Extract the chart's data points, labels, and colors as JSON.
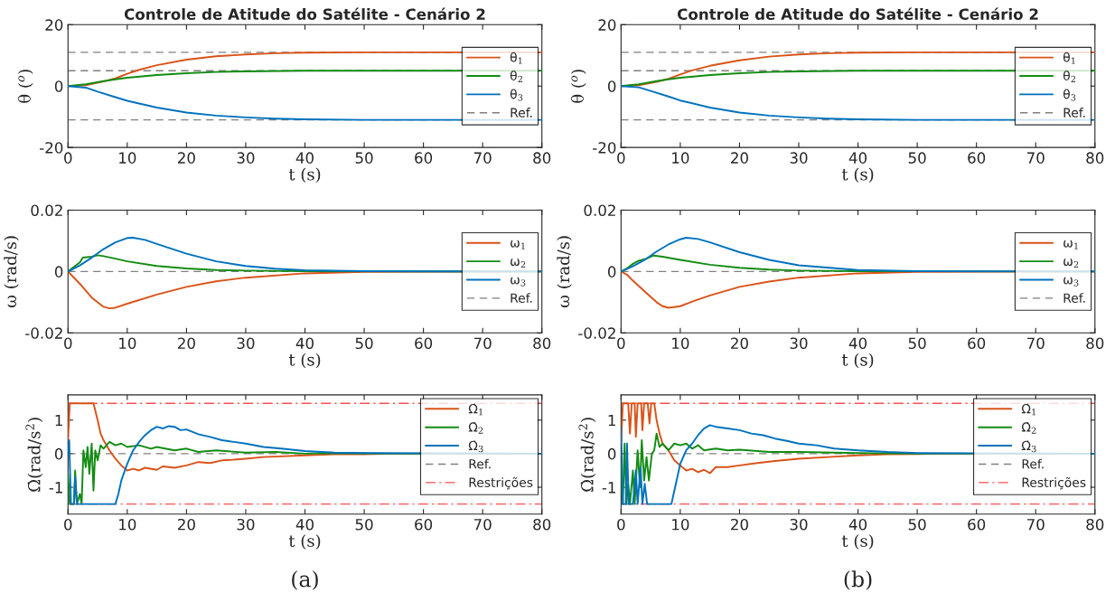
{
  "chart_data": [
    {
      "type": "line",
      "title": "Controle de Atitude do Satélite - Cenário 2",
      "xlabel": "t (s)",
      "ylabel": "θ ($^{o}$)",
      "xlim": [
        0,
        80
      ],
      "xticks": [
        0,
        10,
        20,
        30,
        40,
        50,
        60,
        70,
        80
      ],
      "ylim": [
        -20,
        20
      ],
      "yticks": [
        -20,
        0,
        20
      ],
      "legend": "right",
      "grid": false,
      "ref_lines": [
        {
          "axis": "y",
          "value": 11,
          "color": "#808080",
          "line_style": "dashed",
          "label": "Ref."
        },
        {
          "axis": "y",
          "value": 5,
          "color": "#808080",
          "line_style": "dashed"
        },
        {
          "axis": "y",
          "value": -11,
          "color": "#808080",
          "line_style": "dashed"
        }
      ],
      "series": [
        {
          "name": "θ$_{1}$",
          "color": "#d95319",
          "x": [
            0,
            3,
            6,
            8,
            10,
            12,
            15,
            20,
            25,
            30,
            35,
            40,
            50,
            80
          ],
          "values": [
            0,
            0.3,
            1.5,
            2.5,
            4,
            5.3,
            6.8,
            8.6,
            9.7,
            10.3,
            10.7,
            10.9,
            11,
            11
          ]
        },
        {
          "name": "θ$_{2}$",
          "color": "#138c13",
          "x": [
            0,
            3,
            6,
            8,
            10,
            15,
            20,
            25,
            30,
            40,
            80
          ],
          "values": [
            0,
            0.6,
            1.6,
            2.2,
            2.7,
            3.6,
            4.2,
            4.6,
            4.8,
            5,
            5
          ]
        },
        {
          "name": "θ$_{3}$",
          "color": "#0072bd",
          "x": [
            0,
            3,
            5,
            8,
            10,
            15,
            20,
            25,
            30,
            35,
            40,
            50,
            80
          ],
          "values": [
            0,
            -0.5,
            -1.8,
            -3.6,
            -4.8,
            -7,
            -8.6,
            -9.6,
            -10.2,
            -10.6,
            -10.8,
            -11,
            -11
          ]
        }
      ]
    },
    {
      "type": "line",
      "title": "Controle de Atitude do Satélite - Cenário 2",
      "xlabel": "t (s)",
      "ylabel": "θ ($^{o}$)",
      "xlim": [
        0,
        80
      ],
      "xticks": [
        0,
        10,
        20,
        30,
        40,
        50,
        60,
        70,
        80
      ],
      "ylim": [
        -20,
        20
      ],
      "yticks": [
        -20,
        0,
        20
      ],
      "legend": "right",
      "grid": false,
      "ref_lines": [
        {
          "axis": "y",
          "value": 11,
          "color": "#808080",
          "line_style": "dashed",
          "label": "Ref."
        },
        {
          "axis": "y",
          "value": 5,
          "color": "#808080",
          "line_style": "dashed"
        },
        {
          "axis": "y",
          "value": -11,
          "color": "#808080",
          "line_style": "dashed"
        }
      ],
      "series": [
        {
          "name": "θ$_{1}$",
          "color": "#d95319",
          "x": [
            0,
            3,
            6,
            8,
            10,
            12,
            15,
            20,
            25,
            30,
            35,
            40,
            50,
            80
          ],
          "values": [
            0,
            0.3,
            1.4,
            2.4,
            3.8,
            5.1,
            6.6,
            8.4,
            9.6,
            10.3,
            10.7,
            10.9,
            11,
            11
          ]
        },
        {
          "name": "θ$_{2}$",
          "color": "#138c13",
          "x": [
            0,
            3,
            6,
            8,
            10,
            15,
            20,
            25,
            30,
            40,
            80
          ],
          "values": [
            0,
            0.6,
            1.6,
            2.2,
            2.7,
            3.6,
            4.2,
            4.6,
            4.8,
            5,
            5
          ]
        },
        {
          "name": "θ$_{3}$",
          "color": "#0072bd",
          "x": [
            0,
            3,
            5,
            8,
            10,
            15,
            20,
            25,
            30,
            35,
            40,
            50,
            80
          ],
          "values": [
            0,
            -0.4,
            -1.6,
            -3.4,
            -4.7,
            -7,
            -8.6,
            -9.6,
            -10.2,
            -10.6,
            -10.8,
            -11,
            -11
          ]
        }
      ]
    },
    {
      "type": "line",
      "xlabel": "t (s)",
      "ylabel": "ω (rad/s)",
      "xlim": [
        0,
        80
      ],
      "xticks": [
        0,
        10,
        20,
        30,
        40,
        50,
        60,
        70,
        80
      ],
      "ylim": [
        -0.02,
        0.02
      ],
      "yticks": [
        -0.02,
        0,
        0.02
      ],
      "legend": "right",
      "grid": false,
      "ref_lines": [
        {
          "axis": "y",
          "value": 0,
          "color": "#808080",
          "line_style": "dashed",
          "label": "Ref."
        }
      ],
      "series": [
        {
          "name": "ω$_{1}$",
          "color": "#d95319",
          "x": [
            0,
            2,
            4,
            6,
            7,
            8,
            10,
            15,
            20,
            25,
            30,
            40,
            50,
            80
          ],
          "values": [
            0,
            -0.004,
            -0.0085,
            -0.0115,
            -0.012,
            -0.0118,
            -0.0105,
            -0.0075,
            -0.005,
            -0.0032,
            -0.002,
            -0.0006,
            -0.0001,
            0
          ]
        },
        {
          "name": "ω$_{2}$",
          "color": "#138c13",
          "x": [
            0,
            1,
            2,
            2.5,
            4,
            5,
            6,
            8,
            10,
            15,
            20,
            25,
            30,
            40,
            80
          ],
          "values": [
            0,
            0.0015,
            0.003,
            0.0045,
            0.0048,
            0.0053,
            0.005,
            0.0042,
            0.0033,
            0.0018,
            0.001,
            0.0005,
            0.0003,
            0.0001,
            0
          ]
        },
        {
          "name": "ω$_{3}$",
          "color": "#0072bd",
          "x": [
            0,
            2,
            4,
            6,
            8,
            10,
            11,
            13,
            15,
            20,
            25,
            30,
            35,
            40,
            50,
            80
          ],
          "values": [
            0,
            0.002,
            0.0045,
            0.0073,
            0.0095,
            0.0109,
            0.011,
            0.0103,
            0.009,
            0.0058,
            0.0033,
            0.0018,
            0.0009,
            0.0004,
            0.0001,
            0
          ]
        }
      ]
    },
    {
      "type": "line",
      "xlabel": "t (s)",
      "ylabel": "ω (rad/s)",
      "xlim": [
        0,
        80
      ],
      "xticks": [
        0,
        10,
        20,
        30,
        40,
        50,
        60,
        70,
        80
      ],
      "ylim": [
        -0.02,
        0.02
      ],
      "yticks": [
        -0.02,
        0,
        0.02
      ],
      "legend": "right",
      "grid": false,
      "ref_lines": [
        {
          "axis": "y",
          "value": 0,
          "color": "#808080",
          "line_style": "dashed",
          "label": "Ref."
        }
      ],
      "series": [
        {
          "name": "ω$_{1}$",
          "color": "#d95319",
          "x": [
            0,
            1,
            2,
            4,
            6,
            7,
            8,
            10,
            12,
            15,
            20,
            25,
            30,
            40,
            50,
            80
          ],
          "values": [
            0,
            -0.001,
            -0.003,
            -0.0065,
            -0.01,
            -0.0113,
            -0.0118,
            -0.0113,
            -0.0098,
            -0.0078,
            -0.005,
            -0.0033,
            -0.002,
            -0.0006,
            -0.0001,
            0
          ]
        },
        {
          "name": "ω$_{2}$",
          "color": "#138c13",
          "x": [
            0,
            1,
            2,
            3,
            4,
            5,
            5.5,
            7,
            10,
            15,
            20,
            25,
            30,
            40,
            80
          ],
          "values": [
            0,
            0.001,
            0.0025,
            0.0035,
            0.004,
            0.0048,
            0.0052,
            0.0048,
            0.0038,
            0.0022,
            0.0012,
            0.0006,
            0.0003,
            0.0001,
            0
          ]
        },
        {
          "name": "ω$_{3}$",
          "color": "#0072bd",
          "x": [
            0,
            2,
            4,
            6,
            8,
            10,
            11,
            13,
            15,
            20,
            25,
            30,
            40,
            50,
            80
          ],
          "values": [
            0,
            0.0017,
            0.0038,
            0.0065,
            0.0088,
            0.0105,
            0.011,
            0.0106,
            0.0095,
            0.0063,
            0.0038,
            0.002,
            0.0005,
            0.0001,
            0
          ]
        }
      ]
    },
    {
      "type": "line",
      "xlabel": "t (s)",
      "ylabel": "Ω̇(rad/s$^{2}$)",
      "xlim": [
        0,
        80
      ],
      "xticks": [
        0,
        10,
        20,
        30,
        40,
        50,
        60,
        70,
        80
      ],
      "ylim": [
        -1.8,
        1.75
      ],
      "yticks": [
        -1,
        0,
        1
      ],
      "legend": "top right",
      "grid": false,
      "annotations": [
        "(a)"
      ],
      "ref_lines": [
        {
          "axis": "y",
          "value": 0,
          "color": "#808080",
          "line_style": "dashed",
          "label": "Ref."
        },
        {
          "axis": "y",
          "value": 1.5,
          "color": "#ff5050",
          "line_style": "dashdot",
          "label": "Restrições"
        },
        {
          "axis": "y",
          "value": -1.5,
          "color": "#ff5050",
          "line_style": "dashdot"
        }
      ],
      "series": [
        {
          "name": "Ω̇$_{1}$",
          "color": "#d95319",
          "x": [
            0,
            0.3,
            4.3,
            5,
            5.5,
            6,
            7,
            8,
            9,
            10,
            11,
            12,
            13,
            15,
            16,
            18,
            20,
            22,
            24,
            26,
            28,
            30,
            33,
            36,
            40,
            45,
            50,
            55,
            80
          ],
          "values": [
            0.4,
            1.5,
            1.5,
            1.0,
            0.6,
            0.4,
            0.1,
            -0.15,
            -0.35,
            -0.5,
            -0.45,
            -0.5,
            -0.42,
            -0.48,
            -0.38,
            -0.42,
            -0.35,
            -0.25,
            -0.28,
            -0.2,
            -0.18,
            -0.15,
            -0.1,
            -0.08,
            -0.05,
            -0.02,
            -0.02,
            0,
            0
          ]
        },
        {
          "name": "Ω̇$_{2}$",
          "color": "#138c13",
          "x": [
            0,
            0.3,
            1,
            1.2,
            1.5,
            2,
            2.3,
            2.6,
            3,
            3.3,
            3.6,
            4,
            4.3,
            4.6,
            5,
            5.5,
            6,
            7,
            8,
            9,
            10,
            12,
            14,
            15,
            18,
            20,
            22,
            25,
            30,
            35,
            40,
            45,
            55,
            80
          ],
          "values": [
            -0.6,
            -1.5,
            -1.5,
            -0.5,
            -1.5,
            -1.2,
            -1.5,
            0.1,
            -0.4,
            0.2,
            -0.6,
            0.3,
            -1.1,
            0.1,
            -0.2,
            0.25,
            0.15,
            0.35,
            0.25,
            0.3,
            0.2,
            0.25,
            0.15,
            0.2,
            0.1,
            0.15,
            0.05,
            0.1,
            0.03,
            0.05,
            0,
            0.02,
            0,
            0
          ]
        },
        {
          "name": "Ω̇$_{3}$",
          "color": "#0072bd",
          "x": [
            0,
            0.2,
            0.5,
            1,
            1.2,
            1.5,
            2,
            8,
            8.5,
            9,
            10,
            11,
            12,
            13,
            14,
            15,
            16,
            17,
            18,
            19,
            20,
            22,
            24,
            26,
            28,
            30,
            33,
            36,
            40,
            45,
            50,
            80
          ],
          "values": [
            0,
            0.4,
            -1.5,
            -1.5,
            -0.7,
            -1.5,
            -1.5,
            -1.5,
            -1.2,
            -0.8,
            -0.3,
            0.1,
            0.35,
            0.55,
            0.7,
            0.8,
            0.75,
            0.82,
            0.8,
            0.7,
            0.72,
            0.58,
            0.5,
            0.4,
            0.35,
            0.3,
            0.2,
            0.15,
            0.08,
            0.03,
            0.02,
            0
          ]
        }
      ]
    },
    {
      "type": "line",
      "xlabel": "t (s)",
      "ylabel": "Ω̇(rad/s$^{2}$)",
      "xlim": [
        0,
        80
      ],
      "xticks": [
        0,
        10,
        20,
        30,
        40,
        50,
        60,
        70,
        80
      ],
      "ylim": [
        -1.8,
        1.75
      ],
      "yticks": [
        -1,
        0,
        1
      ],
      "legend": "top right",
      "grid": false,
      "annotations": [
        "(b)"
      ],
      "ref_lines": [
        {
          "axis": "y",
          "value": 0,
          "color": "#808080",
          "line_style": "dashed",
          "label": "Ref."
        },
        {
          "axis": "y",
          "value": 1.5,
          "color": "#ff5050",
          "line_style": "dashdot",
          "label": "Restrições"
        },
        {
          "axis": "y",
          "value": -1.5,
          "color": "#ff5050",
          "line_style": "dashdot"
        }
      ],
      "series": [
        {
          "name": "Ω̇$_{1}$",
          "color": "#d95319",
          "x": [
            0,
            0.3,
            1.2,
            1.5,
            1.8,
            2.3,
            2.5,
            2.8,
            3.4,
            3.6,
            3.9,
            4.5,
            4.8,
            5.1,
            5.6,
            6,
            6.5,
            7,
            8,
            9,
            10,
            11,
            12,
            13,
            14,
            15,
            16,
            18,
            20,
            23,
            26,
            30,
            35,
            40,
            45,
            55,
            80
          ],
          "values": [
            0.3,
            1.5,
            1.5,
            0.6,
            1.5,
            1.5,
            0.5,
            1.5,
            1.5,
            0.7,
            1.5,
            1.5,
            0.9,
            1.5,
            1.5,
            1.0,
            0.6,
            0.3,
            0.1,
            -0.2,
            -0.35,
            -0.5,
            -0.45,
            -0.55,
            -0.48,
            -0.58,
            -0.4,
            -0.4,
            -0.35,
            -0.28,
            -0.22,
            -0.15,
            -0.1,
            -0.05,
            -0.02,
            0,
            0
          ]
        },
        {
          "name": "Ω̇$_{2}$",
          "color": "#138c13",
          "x": [
            0,
            0.3,
            0.6,
            0.9,
            1.2,
            1.5,
            2,
            2.3,
            2.8,
            3.2,
            3.5,
            3.9,
            4.3,
            4.7,
            5.2,
            5.6,
            6,
            6.5,
            7,
            8,
            9,
            10,
            11,
            12,
            13,
            14,
            16,
            18,
            20,
            25,
            30,
            40,
            50,
            80
          ],
          "values": [
            -0.3,
            -1.5,
            0.3,
            -1.5,
            -0.9,
            -1.5,
            -0.5,
            -1.5,
            0.1,
            -1.0,
            0.4,
            -0.8,
            -0.1,
            -0.8,
            0,
            0.1,
            0.6,
            0.2,
            0.3,
            0.1,
            0.3,
            0.25,
            0.3,
            0.15,
            0.25,
            0.1,
            0.15,
            0.1,
            0.12,
            0.05,
            0.05,
            0.02,
            0,
            0
          ]
        },
        {
          "name": "Ω̇$_{3}$",
          "color": "#0072bd",
          "x": [
            0,
            0.3,
            0.8,
            1,
            1.3,
            2,
            2.5,
            2.8,
            3.3,
            3.6,
            4,
            4.4,
            8.5,
            9,
            9.5,
            10,
            11,
            12,
            13,
            14,
            15,
            16,
            18,
            20,
            22,
            24,
            26,
            28,
            30,
            33,
            36,
            40,
            45,
            50,
            80
          ],
          "values": [
            0.8,
            -1.5,
            -1.5,
            0.3,
            -1.5,
            -1.5,
            -0.5,
            -1.5,
            -0.4,
            -1.5,
            -0.9,
            -1.5,
            -1.5,
            -1.1,
            -0.7,
            -0.3,
            0.1,
            0.3,
            0.55,
            0.75,
            0.85,
            0.8,
            0.75,
            0.7,
            0.6,
            0.55,
            0.45,
            0.38,
            0.3,
            0.25,
            0.15,
            0.1,
            0.05,
            0.02,
            0
          ]
        }
      ]
    }
  ]
}
